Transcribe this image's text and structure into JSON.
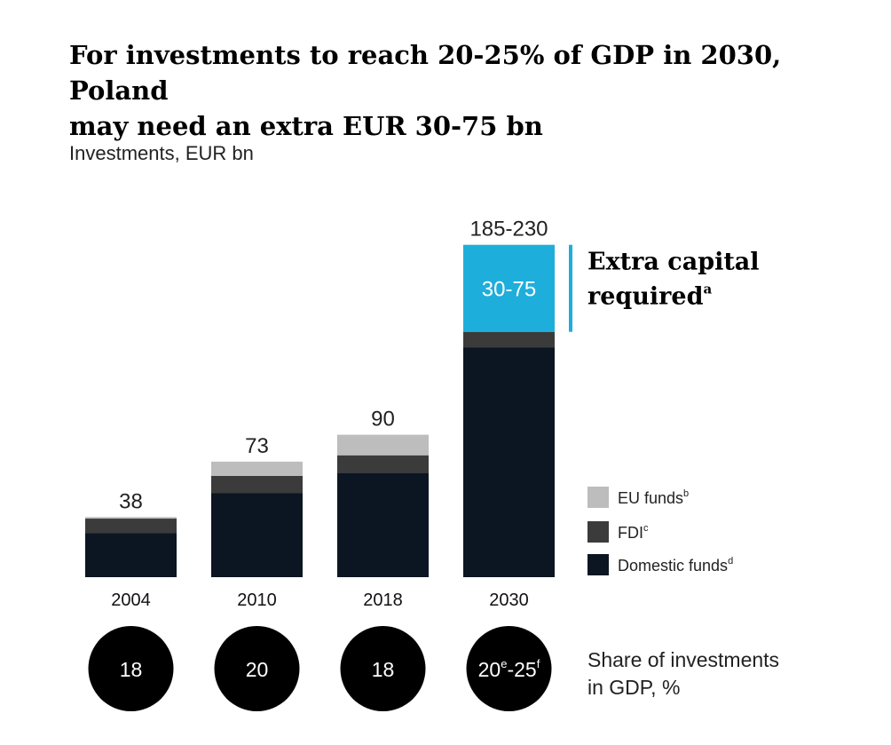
{
  "title_line1": "For investments to reach 20-25% of GDP in 2030, Poland",
  "title_line2": "may need an extra EUR 30-75 bn",
  "unit_label": "Investments, EUR bn",
  "colors": {
    "domestic": "#0c1622",
    "fdi": "#3b3b3b",
    "eu": "#bdbdbd",
    "extra": "#1eaedb",
    "circle": "#000000"
  },
  "chart_data": {
    "type": "bar",
    "stacked": true,
    "categories": [
      "2004",
      "2010",
      "2018",
      "2030"
    ],
    "series": [
      {
        "name": "Domestic funds",
        "superscript": "d",
        "values": [
          28,
          53,
          66,
          145
        ]
      },
      {
        "name": "FDI",
        "superscript": "c",
        "values": [
          9,
          11,
          11,
          10
        ]
      },
      {
        "name": "EU funds",
        "superscript": "b",
        "values": [
          1,
          9,
          13,
          0
        ]
      },
      {
        "name": "Extra capital required",
        "superscript": "a",
        "values": [
          0,
          0,
          0,
          55
        ]
      }
    ],
    "totals": [
      "38",
      "73",
      "90",
      "185-230"
    ],
    "extra_label": "30-75",
    "annotation_line1": "Extra capital",
    "annotation_line2": "required",
    "annotation_superscript": "a",
    "ylim": [
      0,
      230
    ],
    "gdp_share": [
      {
        "main": "18"
      },
      {
        "main": "20"
      },
      {
        "main": "18"
      },
      {
        "main": "20",
        "sup1": "e",
        "sep": "-",
        "main2": "25",
        "sup2": "f"
      }
    ],
    "gdp_share_label_line1": "Share of investments",
    "gdp_share_label_line2": "in GDP, %",
    "legend": [
      {
        "name": "EU funds",
        "superscript": "b",
        "color": "#bdbdbd"
      },
      {
        "name": "FDI",
        "superscript": "c",
        "color": "#3b3b3b"
      },
      {
        "name": "Domestic funds",
        "superscript": "d",
        "color": "#0c1622"
      }
    ],
    "legend_position": "right"
  }
}
